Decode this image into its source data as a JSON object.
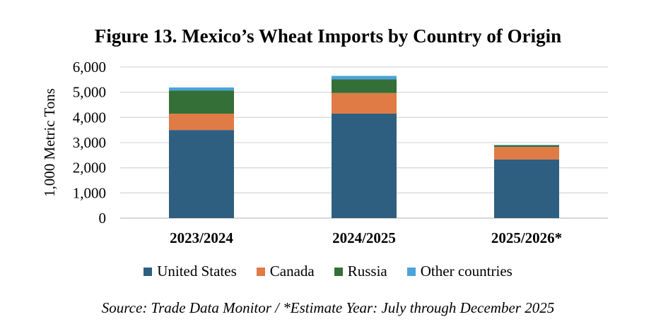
{
  "chart_data": {
    "type": "bar",
    "stacked": true,
    "title": "Figure 13. Mexico’s Wheat Imports by Country of Origin",
    "ylabel": "1,000 Metric Tons",
    "xlabel": "",
    "categories": [
      "2023/2024",
      "2024/2025",
      "2025/2026*"
    ],
    "ylim": [
      0,
      6000
    ],
    "yticks": [
      "0",
      "1,000",
      "2,000",
      "3,000",
      "4,000",
      "5,000",
      "6,000"
    ],
    "grid": true,
    "legend_position": "bottom",
    "series": [
      {
        "name": "United States",
        "color": "#2e5f80",
        "values": [
          3500,
          4150,
          2330
        ]
      },
      {
        "name": "Canada",
        "color": "#e07b45",
        "values": [
          650,
          820,
          500
        ]
      },
      {
        "name": "Russia",
        "color": "#346f37",
        "values": [
          920,
          540,
          60
        ]
      },
      {
        "name": "Other countries",
        "color": "#4ba3d8",
        "values": [
          120,
          140,
          20
        ]
      }
    ],
    "source": "Source: Trade Data Monitor / *Estimate Year: July through December 2025"
  }
}
